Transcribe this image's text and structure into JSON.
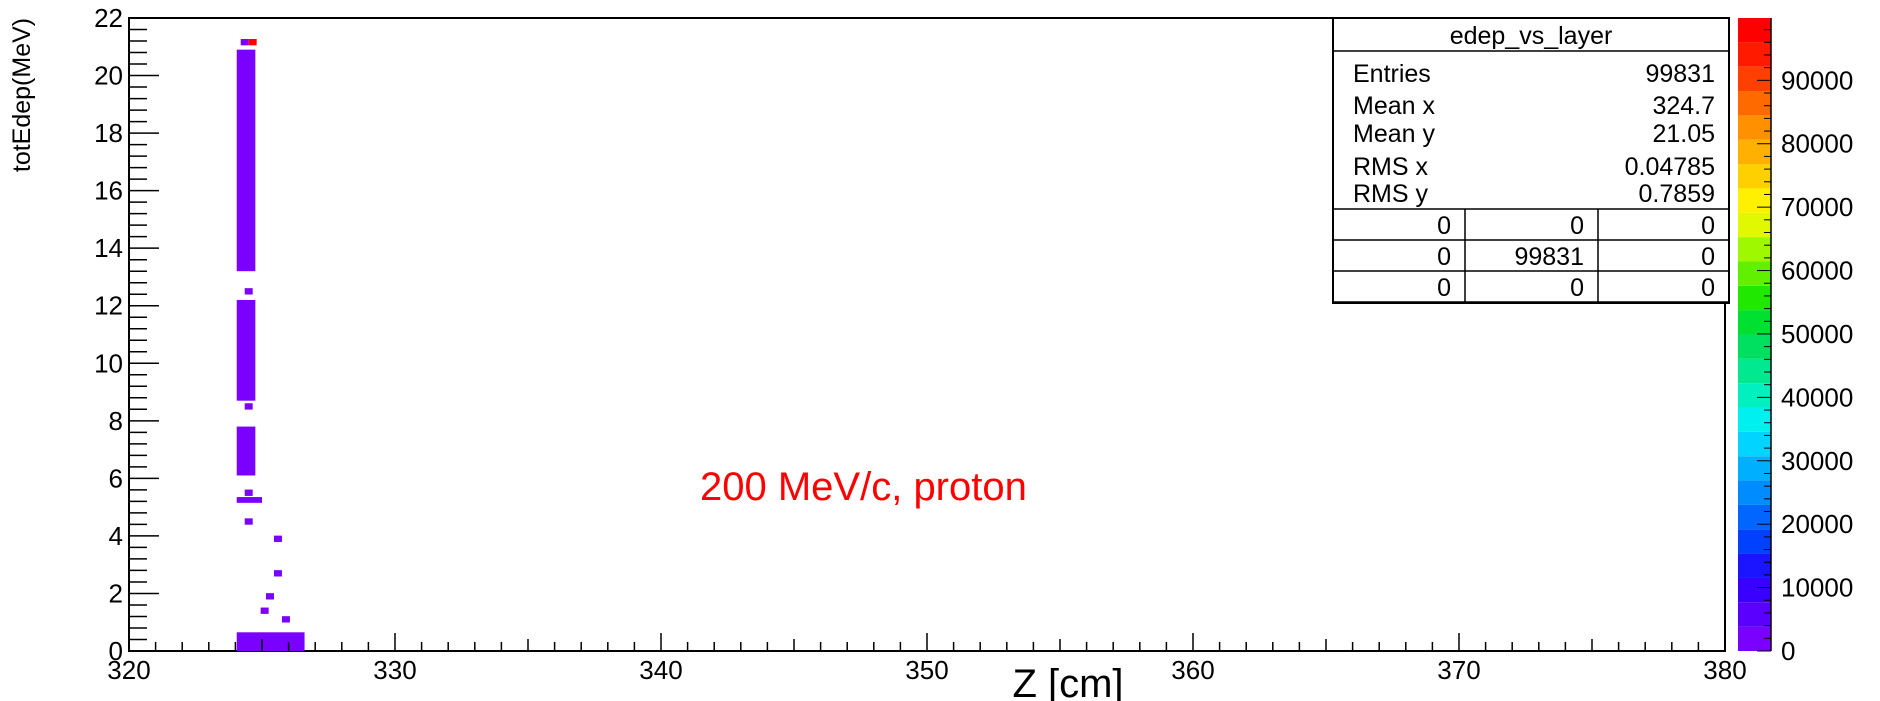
{
  "chart_data": {
    "type": "heatmap",
    "title": "",
    "stats_box": {
      "name": "edep_vs_layer",
      "entries": [
        {
          "label": "Entries",
          "value": "99831"
        },
        {
          "label": "Mean x",
          "value": "324.7"
        },
        {
          "label": "Mean y",
          "value": "21.05"
        },
        {
          "label": "RMS x",
          "value": "0.04785"
        },
        {
          "label": "RMS y",
          "value": "0.7859"
        }
      ],
      "overflow_table": [
        [
          "0",
          "0",
          "0"
        ],
        [
          "0",
          "99831",
          "0"
        ],
        [
          "0",
          "0",
          "0"
        ]
      ]
    },
    "xlabel": "Z [cm]",
    "ylabel": "totEdep(MeV)",
    "xlim": [
      320,
      380
    ],
    "ylim": [
      0,
      22
    ],
    "x_ticks": [
      "320",
      "330",
      "340",
      "350",
      "360",
      "370",
      "380"
    ],
    "y_ticks": [
      "0",
      "2",
      "4",
      "6",
      "8",
      "10",
      "12",
      "14",
      "16",
      "18",
      "20",
      "22"
    ],
    "zlim": [
      0,
      99831
    ],
    "z_ticks": [
      "0",
      "10000",
      "20000",
      "30000",
      "40000",
      "50000",
      "60000",
      "70000",
      "80000",
      "90000"
    ],
    "annotation": "200 MeV/c, proton",
    "annotation_color": "#ff0000",
    "palette": [
      "#7a00ff",
      "#5a00ff",
      "#3a00ff",
      "#1a14ff",
      "#0040ff",
      "#0066ff",
      "#008cff",
      "#00b0ff",
      "#00d4ff",
      "#00f0f0",
      "#00f0c0",
      "#00e890",
      "#00e060",
      "#00e030",
      "#20e800",
      "#60f000",
      "#a0f800",
      "#e0f800",
      "#fff000",
      "#ffd000",
      "#ffb000",
      "#ff9000",
      "#ff6a00",
      "#ff4000",
      "#ff1a00",
      "#ff0000"
    ],
    "cells": [
      {
        "x": 324.35,
        "y": 21.16,
        "value": 120
      },
      {
        "x": 324.65,
        "y": 21.16,
        "value": 99000
      },
      {
        "x": 324.5,
        "y": 20.5,
        "value": 20
      },
      {
        "x": 324.5,
        "y": 19.5,
        "value": 20
      },
      {
        "x": 324.5,
        "y": 18.5,
        "value": 20
      },
      {
        "x": 324.5,
        "y": 17.5,
        "value": 20
      },
      {
        "x": 324.5,
        "y": 16.5,
        "value": 20
      },
      {
        "x": 324.5,
        "y": 15.5,
        "value": 20
      },
      {
        "x": 324.5,
        "y": 14.5,
        "value": 20
      },
      {
        "x": 324.5,
        "y": 13.5,
        "value": 20
      },
      {
        "x": 324.5,
        "y": 12.5,
        "value": 20
      },
      {
        "x": 324.5,
        "y": 11.5,
        "value": 20
      },
      {
        "x": 324.5,
        "y": 10.5,
        "value": 20
      },
      {
        "x": 324.5,
        "y": 9.5,
        "value": 20
      },
      {
        "x": 324.5,
        "y": 8.5,
        "value": 20
      },
      {
        "x": 324.5,
        "y": 7.5,
        "value": 20
      },
      {
        "x": 324.5,
        "y": 6.5,
        "value": 20
      },
      {
        "x": 324.5,
        "y": 5.5,
        "value": 20
      },
      {
        "x": 324.5,
        "y": 4.5,
        "value": 20
      },
      {
        "x": 325.6,
        "y": 3.9,
        "value": 5
      },
      {
        "x": 325.6,
        "y": 2.7,
        "value": 5
      },
      {
        "x": 325.3,
        "y": 1.9,
        "value": 5
      },
      {
        "x": 325.1,
        "y": 1.4,
        "value": 5
      },
      {
        "x": 325.9,
        "y": 1.1,
        "value": 5
      },
      {
        "x": 325.0,
        "y": 0.2,
        "value": 10
      }
    ]
  }
}
